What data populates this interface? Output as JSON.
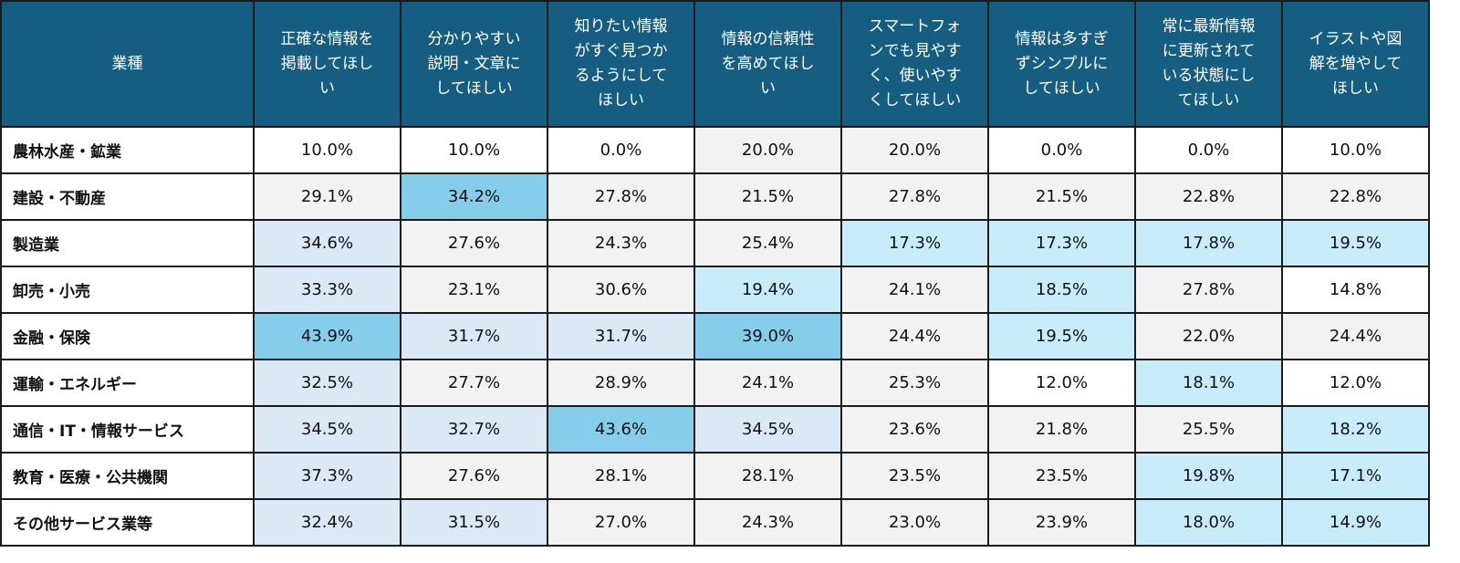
{
  "table": {
    "header_first": "業種",
    "columns": [
      [
        "正確な情報を",
        "掲載してほし",
        "い"
      ],
      [
        "分かりやすい",
        "説明・文章に",
        "してほしい"
      ],
      [
        "知りたい情報",
        "がすぐ見つか",
        "るようにして",
        "ほしい"
      ],
      [
        "情報の信頼性",
        "を高めてほし",
        "い"
      ],
      [
        "スマートフォ",
        "ンでも見やす",
        "く、使いやす",
        "くしてほしい"
      ],
      [
        "情報は多すぎ",
        "ずシンプルに",
        "してほしい"
      ],
      [
        "常に最新情報",
        "に更新されて",
        "いる状態にし",
        "てほしい"
      ],
      [
        "イラストや図",
        "解を増やして",
        "ほしい"
      ]
    ],
    "rows": [
      {
        "industry": "農林水産・鉱業",
        "values": [
          "10.0%",
          "10.0%",
          "0.0%",
          "20.0%",
          "20.0%",
          "0.0%",
          "0.0%",
          "10.0%"
        ],
        "shade": [
          "w",
          "w",
          "w",
          "g",
          "g",
          "w",
          "w",
          "w"
        ]
      },
      {
        "industry": "建設・不動産",
        "values": [
          "29.1%",
          "34.2%",
          "27.8%",
          "21.5%",
          "27.8%",
          "21.5%",
          "22.8%",
          "22.8%"
        ],
        "shade": [
          "g",
          "s",
          "g",
          "g",
          "g",
          "g",
          "g",
          "g"
        ]
      },
      {
        "industry": "製造業",
        "values": [
          "34.6%",
          "27.6%",
          "24.3%",
          "25.4%",
          "17.3%",
          "17.3%",
          "17.8%",
          "19.5%"
        ],
        "shade": [
          "b",
          "g",
          "g",
          "g",
          "c",
          "c",
          "c",
          "c"
        ]
      },
      {
        "industry": "卸売・小売",
        "values": [
          "33.3%",
          "23.1%",
          "30.6%",
          "19.4%",
          "24.1%",
          "18.5%",
          "27.8%",
          "14.8%"
        ],
        "shade": [
          "b",
          "g",
          "g",
          "c",
          "g",
          "c",
          "g",
          "w"
        ]
      },
      {
        "industry": "金融・保険",
        "values": [
          "43.9%",
          "31.7%",
          "31.7%",
          "39.0%",
          "24.4%",
          "19.5%",
          "22.0%",
          "24.4%"
        ],
        "shade": [
          "s",
          "b",
          "b",
          "s",
          "g",
          "c",
          "g",
          "g"
        ]
      },
      {
        "industry": "運輸・エネルギー",
        "values": [
          "32.5%",
          "27.7%",
          "28.9%",
          "24.1%",
          "25.3%",
          "12.0%",
          "18.1%",
          "12.0%"
        ],
        "shade": [
          "b",
          "g",
          "g",
          "g",
          "g",
          "w",
          "c",
          "w"
        ]
      },
      {
        "industry": "通信・IT・情報サービス",
        "values": [
          "34.5%",
          "32.7%",
          "43.6%",
          "34.5%",
          "23.6%",
          "21.8%",
          "25.5%",
          "18.2%"
        ],
        "shade": [
          "b",
          "b",
          "s",
          "b",
          "g",
          "g",
          "g",
          "c"
        ]
      },
      {
        "industry": "教育・医療・公共機関",
        "values": [
          "37.3%",
          "27.6%",
          "28.1%",
          "28.1%",
          "23.5%",
          "23.5%",
          "19.8%",
          "17.1%"
        ],
        "shade": [
          "b",
          "g",
          "g",
          "g",
          "g",
          "g",
          "c",
          "c"
        ]
      },
      {
        "industry": "その他サービス業等",
        "values": [
          "32.4%",
          "31.5%",
          "27.0%",
          "24.3%",
          "23.0%",
          "23.9%",
          "18.0%",
          "14.9%"
        ],
        "shade": [
          "b",
          "b",
          "g",
          "g",
          "g",
          "g",
          "c",
          "c"
        ]
      }
    ]
  },
  "colors": {
    "header": "#165e81",
    "gray": "#f2f2f2",
    "light_blue": "#dbe9f7",
    "pale_cyan": "#c9ecfa",
    "strong_blue": "#86cdec"
  }
}
